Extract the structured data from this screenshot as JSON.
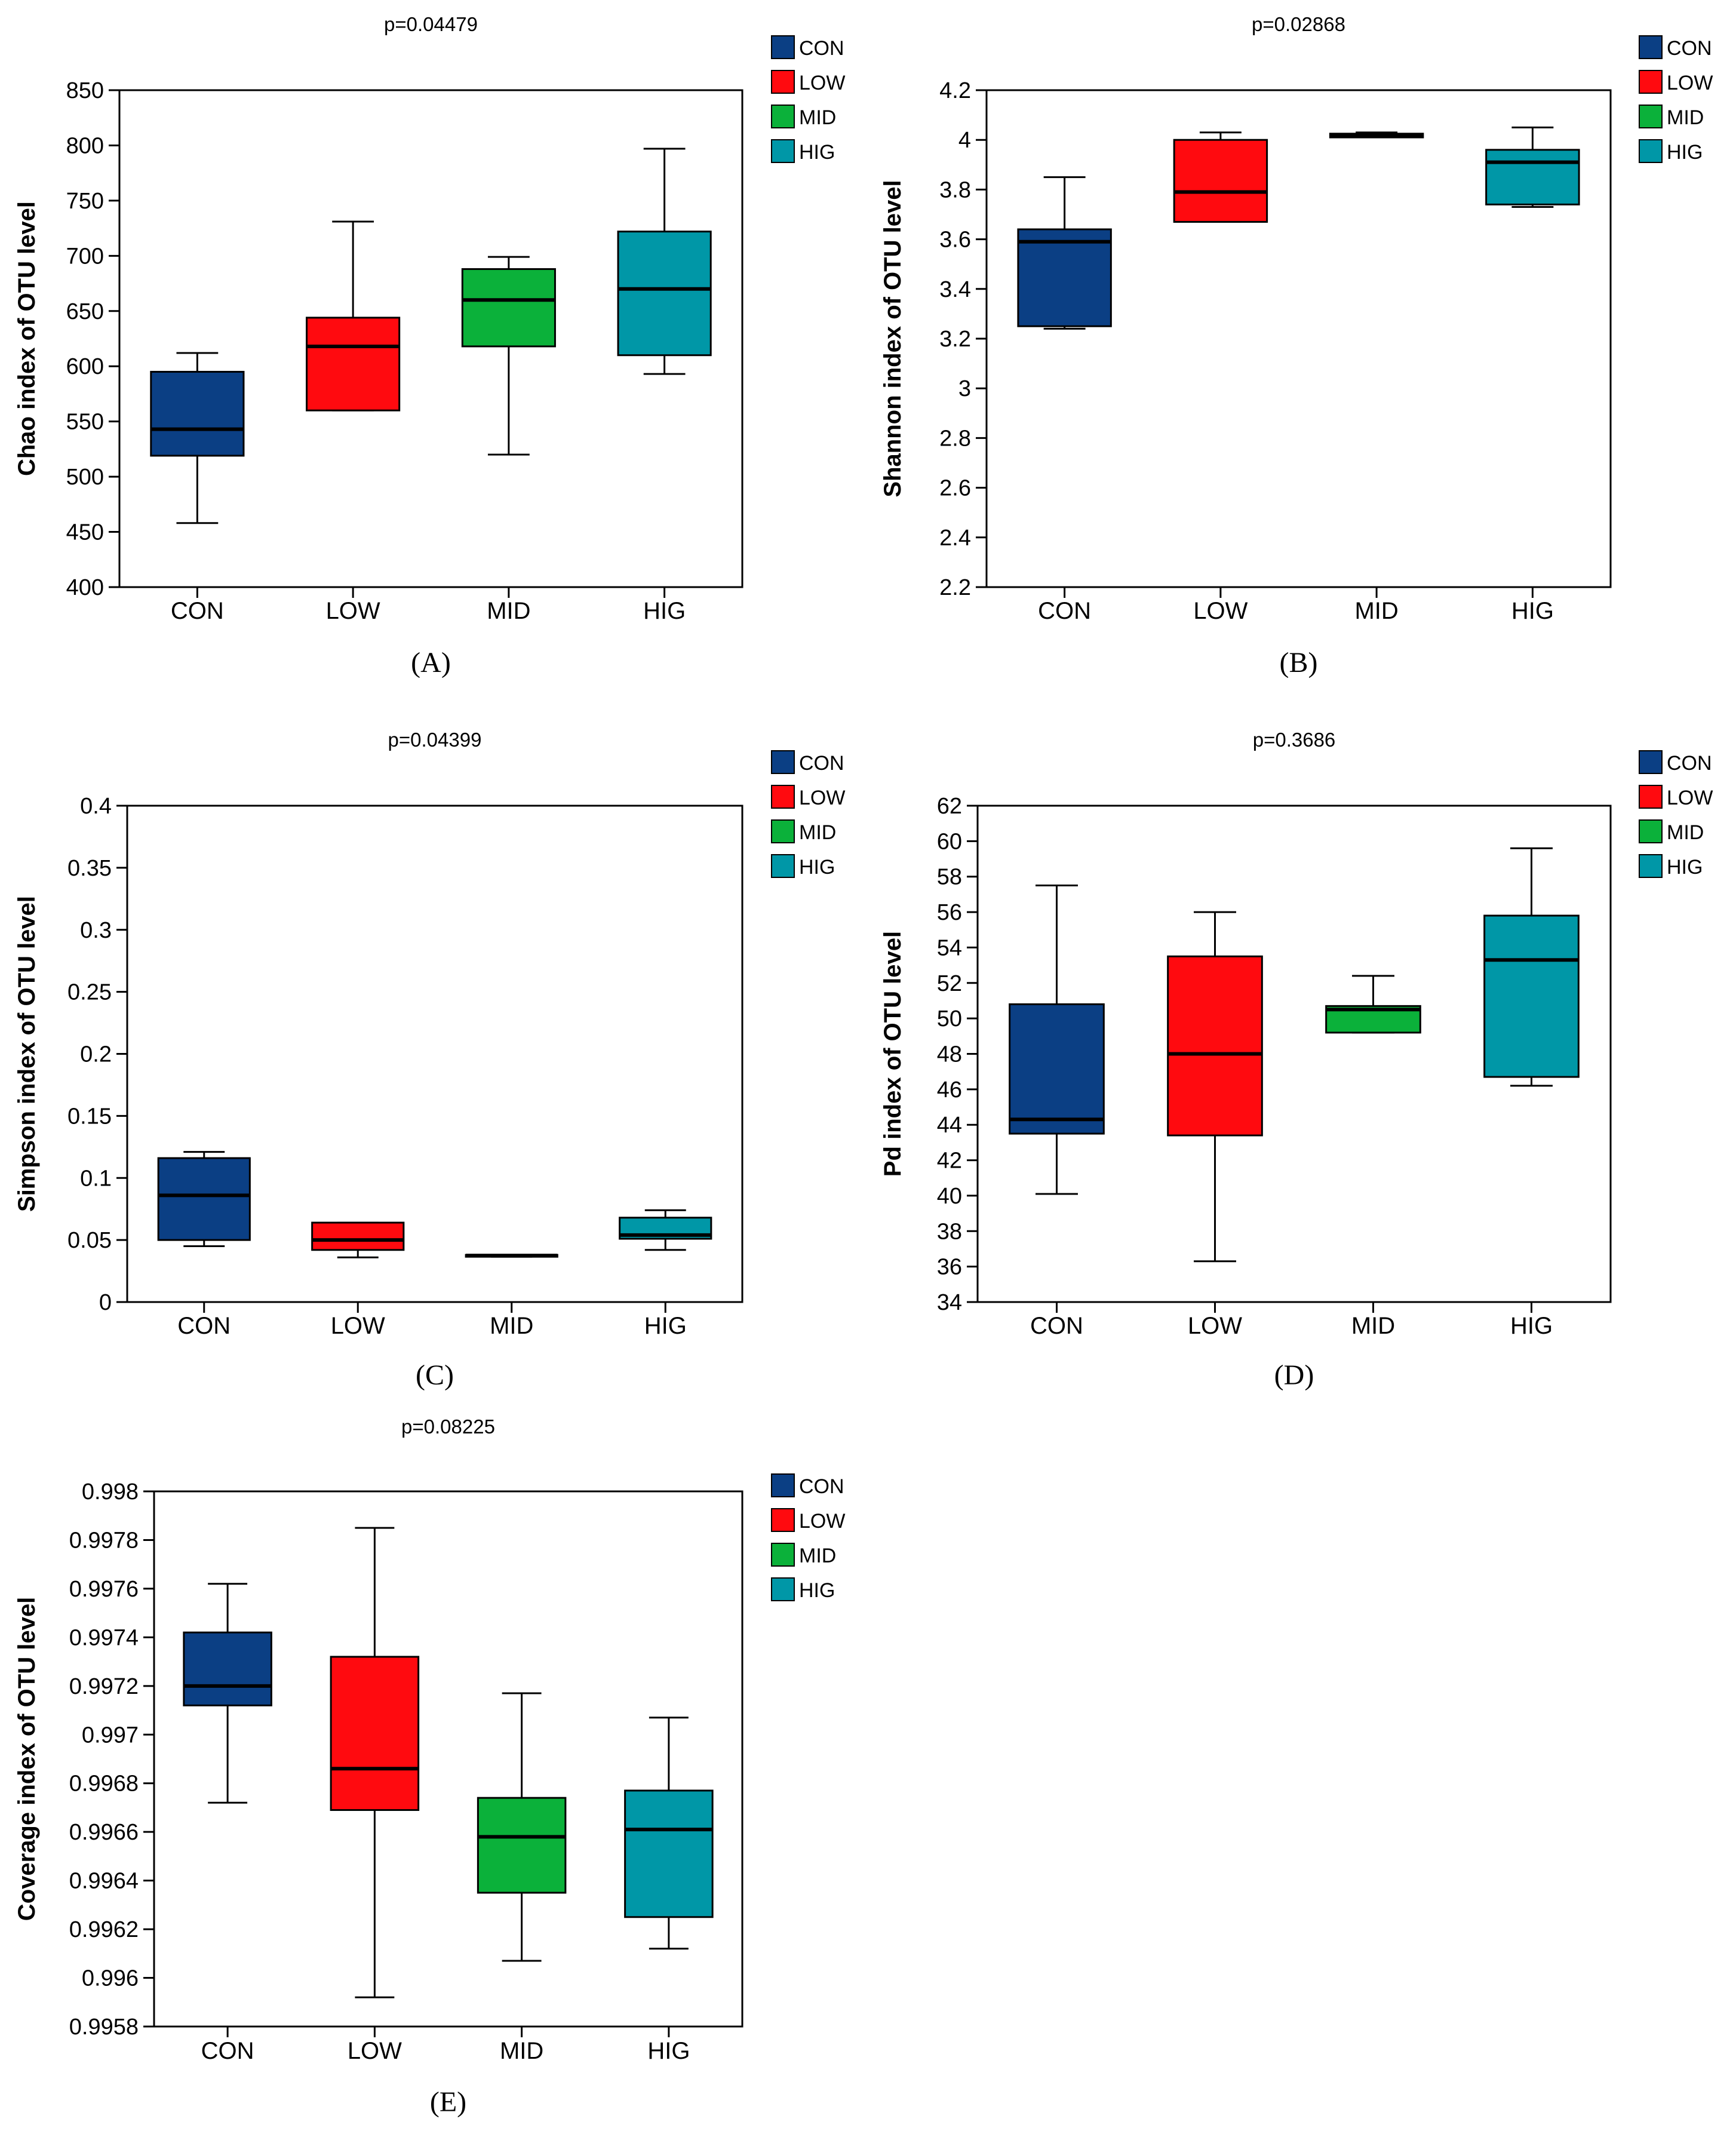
{
  "figure": {
    "groups": [
      "CON",
      "LOW",
      "MID",
      "HIG"
    ],
    "colors": {
      "CON": "#0b3f84",
      "LOW": "#ff0a0f",
      "MID": "#0bb13a",
      "HIG": "#0097a7"
    }
  },
  "chart_data": [
    {
      "type": "box",
      "panel_label": "(A)",
      "title": "p=0.04479",
      "ylabel": "Chao index of OTU level",
      "xlabel": "",
      "ylim": [
        400,
        850
      ],
      "yticks": [
        400,
        450,
        500,
        550,
        600,
        650,
        700,
        750,
        800,
        850
      ],
      "ytick_labels": [
        "400",
        "450",
        "500",
        "550",
        "600",
        "650",
        "700",
        "750",
        "800",
        "850"
      ],
      "categories": [
        "CON",
        "LOW",
        "MID",
        "HIG"
      ],
      "legend": [
        "CON",
        "LOW",
        "MID",
        "HIG"
      ],
      "boxes": [
        {
          "group": "CON",
          "min": 458,
          "q1": 519,
          "median": 543,
          "q3": 595,
          "max": 612
        },
        {
          "group": "LOW",
          "min": 560,
          "q1": 560,
          "median": 618,
          "q3": 644,
          "max": 731
        },
        {
          "group": "MID",
          "min": 520,
          "q1": 618,
          "median": 660,
          "q3": 688,
          "max": 699
        },
        {
          "group": "HIG",
          "min": 593,
          "q1": 610,
          "median": 670,
          "q3": 722,
          "max": 797
        }
      ]
    },
    {
      "type": "box",
      "panel_label": "(B)",
      "title": "p=0.02868",
      "ylabel": "Shannon index of OTU level",
      "xlabel": "",
      "ylim": [
        2.2,
        4.2
      ],
      "yticks": [
        2.2,
        2.4,
        2.6,
        2.8,
        3.0,
        3.2,
        3.4,
        3.6,
        3.8,
        4.0,
        4.2
      ],
      "ytick_labels": [
        "2.2",
        "2.4",
        "2.6",
        "2.8",
        "3",
        "3.2",
        "3.4",
        "3.6",
        "3.8",
        "4",
        "4.2"
      ],
      "categories": [
        "CON",
        "LOW",
        "MID",
        "HIG"
      ],
      "legend": [
        "CON",
        "LOW",
        "MID",
        "HIG"
      ],
      "boxes": [
        {
          "group": "CON",
          "min": 3.24,
          "q1": 3.25,
          "median": 3.59,
          "q3": 3.64,
          "max": 3.85
        },
        {
          "group": "LOW",
          "min": 3.67,
          "q1": 3.67,
          "median": 3.79,
          "q3": 4.0,
          "max": 4.03
        },
        {
          "group": "MID",
          "min": 4.01,
          "q1": 4.01,
          "median": 4.02,
          "q3": 4.025,
          "max": 4.03
        },
        {
          "group": "HIG",
          "min": 3.73,
          "q1": 3.74,
          "median": 3.91,
          "q3": 3.96,
          "max": 4.05
        }
      ]
    },
    {
      "type": "box",
      "panel_label": "(C)",
      "title": "p=0.04399",
      "ylabel": "Simpson index of OTU level",
      "xlabel": "",
      "ylim": [
        0,
        0.4
      ],
      "yticks": [
        0,
        0.05,
        0.1,
        0.15,
        0.2,
        0.25,
        0.3,
        0.35,
        0.4
      ],
      "ytick_labels": [
        "0",
        "0.05",
        "0.1",
        "0.15",
        "0.2",
        "0.25",
        "0.3",
        "0.35",
        "0.4"
      ],
      "categories": [
        "CON",
        "LOW",
        "MID",
        "HIG"
      ],
      "legend": [
        "CON",
        "LOW",
        "MID",
        "HIG"
      ],
      "boxes": [
        {
          "group": "CON",
          "min": 0.045,
          "q1": 0.05,
          "median": 0.086,
          "q3": 0.116,
          "max": 0.121
        },
        {
          "group": "LOW",
          "min": 0.036,
          "q1": 0.042,
          "median": 0.05,
          "q3": 0.064,
          "max": 0.064
        },
        {
          "group": "MID",
          "min": 0.0365,
          "q1": 0.0365,
          "median": 0.0375,
          "q3": 0.038,
          "max": 0.038
        },
        {
          "group": "HIG",
          "min": 0.042,
          "q1": 0.051,
          "median": 0.054,
          "q3": 0.068,
          "max": 0.074
        }
      ]
    },
    {
      "type": "box",
      "panel_label": "(D)",
      "title": "p=0.3686",
      "ylabel": "Pd index of OTU level",
      "xlabel": "",
      "ylim": [
        34,
        62
      ],
      "yticks": [
        34,
        36,
        38,
        40,
        42,
        44,
        46,
        48,
        50,
        52,
        54,
        56,
        58,
        60,
        62
      ],
      "ytick_labels": [
        "34",
        "36",
        "38",
        "40",
        "42",
        "44",
        "46",
        "48",
        "50",
        "52",
        "54",
        "56",
        "58",
        "60",
        "62"
      ],
      "categories": [
        "CON",
        "LOW",
        "MID",
        "HIG"
      ],
      "legend": [
        "CON",
        "LOW",
        "MID",
        "HIG"
      ],
      "boxes": [
        {
          "group": "CON",
          "min": 40.1,
          "q1": 43.5,
          "median": 44.3,
          "q3": 50.8,
          "max": 57.5
        },
        {
          "group": "LOW",
          "min": 36.3,
          "q1": 43.4,
          "median": 48.0,
          "q3": 53.5,
          "max": 56.0
        },
        {
          "group": "MID",
          "min": 49.2,
          "q1": 49.2,
          "median": 50.5,
          "q3": 50.7,
          "max": 52.4
        },
        {
          "group": "HIG",
          "min": 46.2,
          "q1": 46.7,
          "median": 53.3,
          "q3": 55.8,
          "max": 59.6
        }
      ]
    },
    {
      "type": "box",
      "panel_label": "(E)",
      "title": "p=0.08225",
      "ylabel": "Coverage index of OTU level",
      "xlabel": "",
      "ylim": [
        0.9958,
        0.998
      ],
      "yticks": [
        0.9958,
        0.996,
        0.9962,
        0.9964,
        0.9966,
        0.9968,
        0.997,
        0.9972,
        0.9974,
        0.9976,
        0.9978,
        0.998
      ],
      "ytick_labels": [
        "0.9958",
        "0.996",
        "0.9962",
        "0.9964",
        "0.9966",
        "0.9968",
        "0.997",
        "0.9972",
        "0.9974",
        "0.9976",
        "0.9978",
        "0.998"
      ],
      "categories": [
        "CON",
        "LOW",
        "MID",
        "HIG"
      ],
      "legend": [
        "CON",
        "LOW",
        "MID",
        "HIG"
      ],
      "boxes": [
        {
          "group": "CON",
          "min": 0.99672,
          "q1": 0.99712,
          "median": 0.9972,
          "q3": 0.99742,
          "max": 0.99762
        },
        {
          "group": "LOW",
          "min": 0.99592,
          "q1": 0.99669,
          "median": 0.99686,
          "q3": 0.99732,
          "max": 0.99785
        },
        {
          "group": "MID",
          "min": 0.99607,
          "q1": 0.99635,
          "median": 0.99658,
          "q3": 0.99674,
          "max": 0.99717
        },
        {
          "group": "HIG",
          "min": 0.99612,
          "q1": 0.99625,
          "median": 0.99661,
          "q3": 0.99677,
          "max": 0.99707
        }
      ]
    }
  ]
}
